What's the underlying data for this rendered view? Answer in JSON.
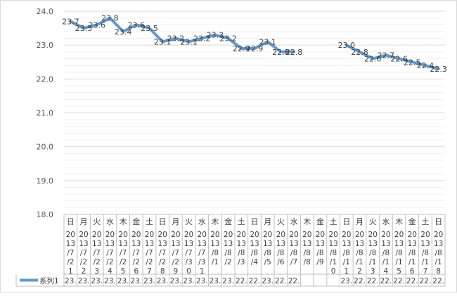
{
  "chart_data": {
    "type": "line",
    "title": "",
    "xlabel": "",
    "ylabel": "",
    "ylim": [
      18.0,
      24.0
    ],
    "y_ticks": [
      "18.0",
      "19.0",
      "20.0",
      "21.0",
      "22.0",
      "23.0",
      "24.0"
    ],
    "grid": "horizontal",
    "legend_position": "bottom-left (data table)",
    "series_color": "#5b9bd5",
    "categories": [
      {
        "day": "日",
        "date": "2013/7/21"
      },
      {
        "day": "月",
        "date": "2013/7/22"
      },
      {
        "day": "火",
        "date": "2013/7/23"
      },
      {
        "day": "水",
        "date": "2013/7/24"
      },
      {
        "day": "木",
        "date": "2013/7/25"
      },
      {
        "day": "金",
        "date": "2013/7/26"
      },
      {
        "day": "土",
        "date": "2013/7/27"
      },
      {
        "day": "日",
        "date": "2013/7/28"
      },
      {
        "day": "月",
        "date": "2013/7/29"
      },
      {
        "day": "火",
        "date": "2013/7/30"
      },
      {
        "day": "水",
        "date": "2013/7/31"
      },
      {
        "day": "木",
        "date": "2013/8/1"
      },
      {
        "day": "金",
        "date": "2013/8/2"
      },
      {
        "day": "土",
        "date": "2013/8/3"
      },
      {
        "day": "日",
        "date": "2013/8/4"
      },
      {
        "day": "月",
        "date": "2013/8/5"
      },
      {
        "day": "火",
        "date": "2013/8/6"
      },
      {
        "day": "水",
        "date": "2013/8/7"
      },
      {
        "day": "木",
        "date": "2013/8/8"
      },
      {
        "day": "金",
        "date": "2013/8/9"
      },
      {
        "day": "土",
        "date": "2013/8/10"
      },
      {
        "day": "日",
        "date": "2013/8/11"
      },
      {
        "day": "月",
        "date": "2013/8/12"
      },
      {
        "day": "火",
        "date": "2013/8/13"
      },
      {
        "day": "水",
        "date": "2013/8/14"
      },
      {
        "day": "木",
        "date": "2013/8/15"
      },
      {
        "day": "金",
        "date": "2013/8/16"
      },
      {
        "day": "土",
        "date": "2013/8/17"
      },
      {
        "day": "日",
        "date": "2013/8/18"
      }
    ],
    "series": [
      {
        "name": "系列1",
        "values": [
          23.7,
          23.5,
          23.6,
          23.8,
          23.4,
          23.6,
          23.5,
          23.1,
          23.2,
          23.1,
          23.2,
          23.3,
          23.2,
          22.9,
          22.9,
          23.1,
          22.8,
          22.8,
          null,
          null,
          null,
          23.0,
          22.8,
          22.6,
          22.7,
          22.6,
          22.5,
          22.4,
          22.3
        ],
        "data_labels": [
          "23.7",
          "23.5",
          "23.6",
          "23.8",
          "23.4",
          "23.6",
          "23.5",
          "23.1",
          "23.2",
          "23.1",
          "23.2",
          "23.3",
          "23.2",
          "22.9",
          "22.9",
          "23.1",
          "22.8",
          "22.8",
          "",
          "",
          "",
          "23.0",
          "22.8",
          "22.6",
          "22.7",
          "22.6",
          "22.5",
          "22.4",
          "22.3"
        ],
        "table_values": [
          "23.",
          "23.",
          "23.",
          "23.",
          "23.",
          "23.",
          "23.",
          "23.",
          "23.",
          "23.",
          "23.",
          "23.",
          "23.",
          "22.",
          "22.",
          "23.",
          "22.",
          "22.",
          "",
          "",
          "",
          "23.",
          "22.",
          "22.",
          "22.",
          "22.",
          "22.",
          "22.",
          "22."
        ]
      }
    ]
  }
}
